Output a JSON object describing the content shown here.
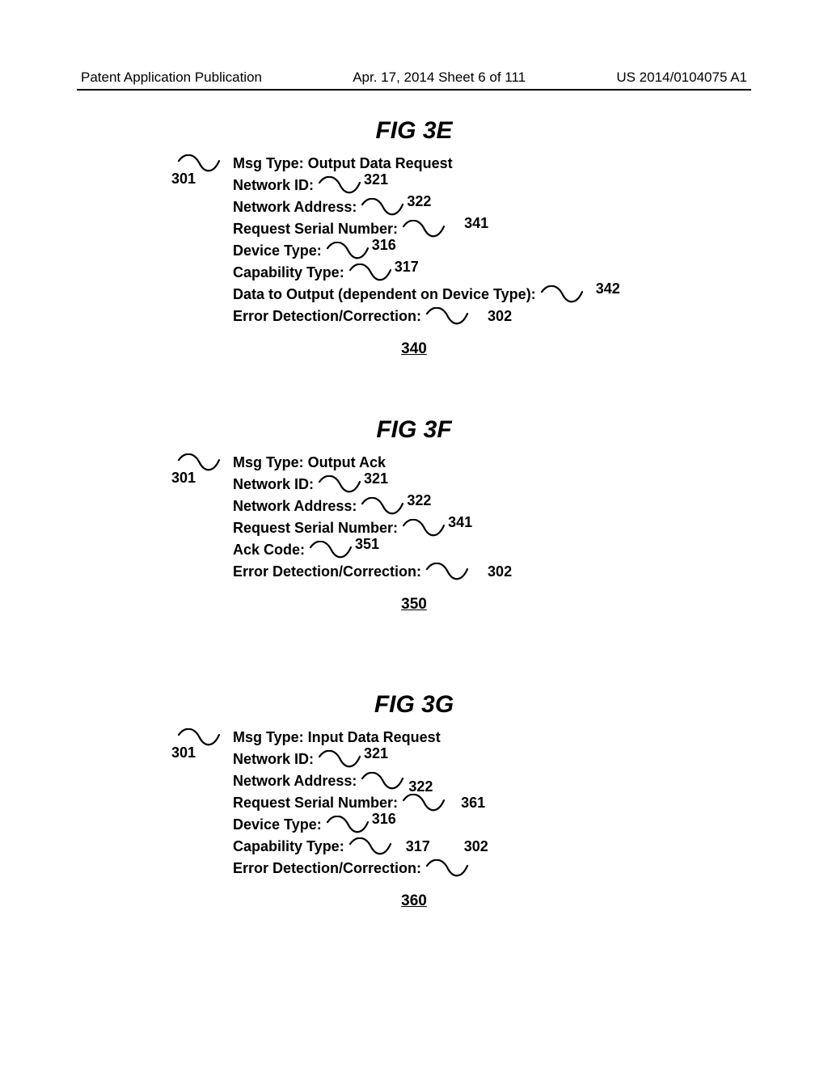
{
  "header": {
    "left": "Patent Application Publication",
    "center": "Apr. 17, 2014  Sheet 6 of 111",
    "right": "US 2014/0104075 A1"
  },
  "figures": [
    {
      "title": "FIG 3E",
      "footer": "340",
      "leading_ref": "301",
      "lines": [
        {
          "label": "Msg Type:  Output Data Request",
          "blank": false
        },
        {
          "label": "Network ID:",
          "blank": true,
          "ref": "321",
          "ref_pos": "above"
        },
        {
          "label": "Network Address:",
          "blank": true,
          "ref": "322",
          "ref_pos": "above"
        },
        {
          "label": "Request Serial Number:",
          "blank": true,
          "ref": "341",
          "ref_pos": "above",
          "ref_gap": 20
        },
        {
          "label": "Device Type:",
          "blank": true,
          "ref": "316",
          "ref_pos": "above"
        },
        {
          "label": "Capability Type:",
          "blank": true,
          "ref": "317",
          "ref_pos": "above"
        },
        {
          "label": "Data to Output (dependent on Device Type):",
          "blank": true,
          "ref": "342",
          "ref_pos": "above",
          "ref_gap": 12
        },
        {
          "label": "Error Detection/Correction:",
          "blank": true,
          "ref": "302",
          "ref_pos": "right",
          "ref_gap": 14
        }
      ]
    },
    {
      "title": "FIG 3F",
      "footer": "350",
      "leading_ref": "301",
      "lines": [
        {
          "label": "Msg Type:  Output Ack",
          "blank": false
        },
        {
          "label": "Network ID:",
          "blank": true,
          "ref": "321",
          "ref_pos": "above"
        },
        {
          "label": "Network Address:",
          "blank": true,
          "ref": "322",
          "ref_pos": "above"
        },
        {
          "label": "Request Serial Number:",
          "blank": true,
          "ref": "341",
          "ref_pos": "above"
        },
        {
          "label": "Ack Code:",
          "blank": true,
          "ref": "351",
          "ref_pos": "above"
        },
        {
          "label": "Error Detection/Correction:",
          "blank": true,
          "ref": "302",
          "ref_pos": "right",
          "ref_gap": 14
        }
      ]
    },
    {
      "title": "FIG 3G",
      "footer": "360",
      "leading_ref": "301",
      "lines": [
        {
          "label": "Msg Type:  Input Data Request",
          "blank": false
        },
        {
          "label": "Network ID:",
          "blank": true,
          "ref": "321",
          "ref_pos": "above"
        },
        {
          "label": "Network Address:",
          "blank": true,
          "ref": "322",
          "ref_pos": "below",
          "ref_gap": 2,
          "extra_ref_top": true
        },
        {
          "label": "Request Serial Number:",
          "blank": true,
          "ref": "361",
          "ref_pos": "right",
          "ref_gap": 10
        },
        {
          "label": "Device Type:",
          "blank": true,
          "ref": "316",
          "ref_pos": "above"
        },
        {
          "label": "Capability Type:",
          "blank": true,
          "ref": "317",
          "ref_pos": "right",
          "ref_gap": 8,
          "trailing_ref": "302"
        },
        {
          "label": "Error Detection/Correction:",
          "blank": true
        }
      ]
    }
  ],
  "style": {
    "blank_width": 56,
    "blank_height": 18,
    "stroke": "#000000",
    "stroke_width": 2.2
  }
}
